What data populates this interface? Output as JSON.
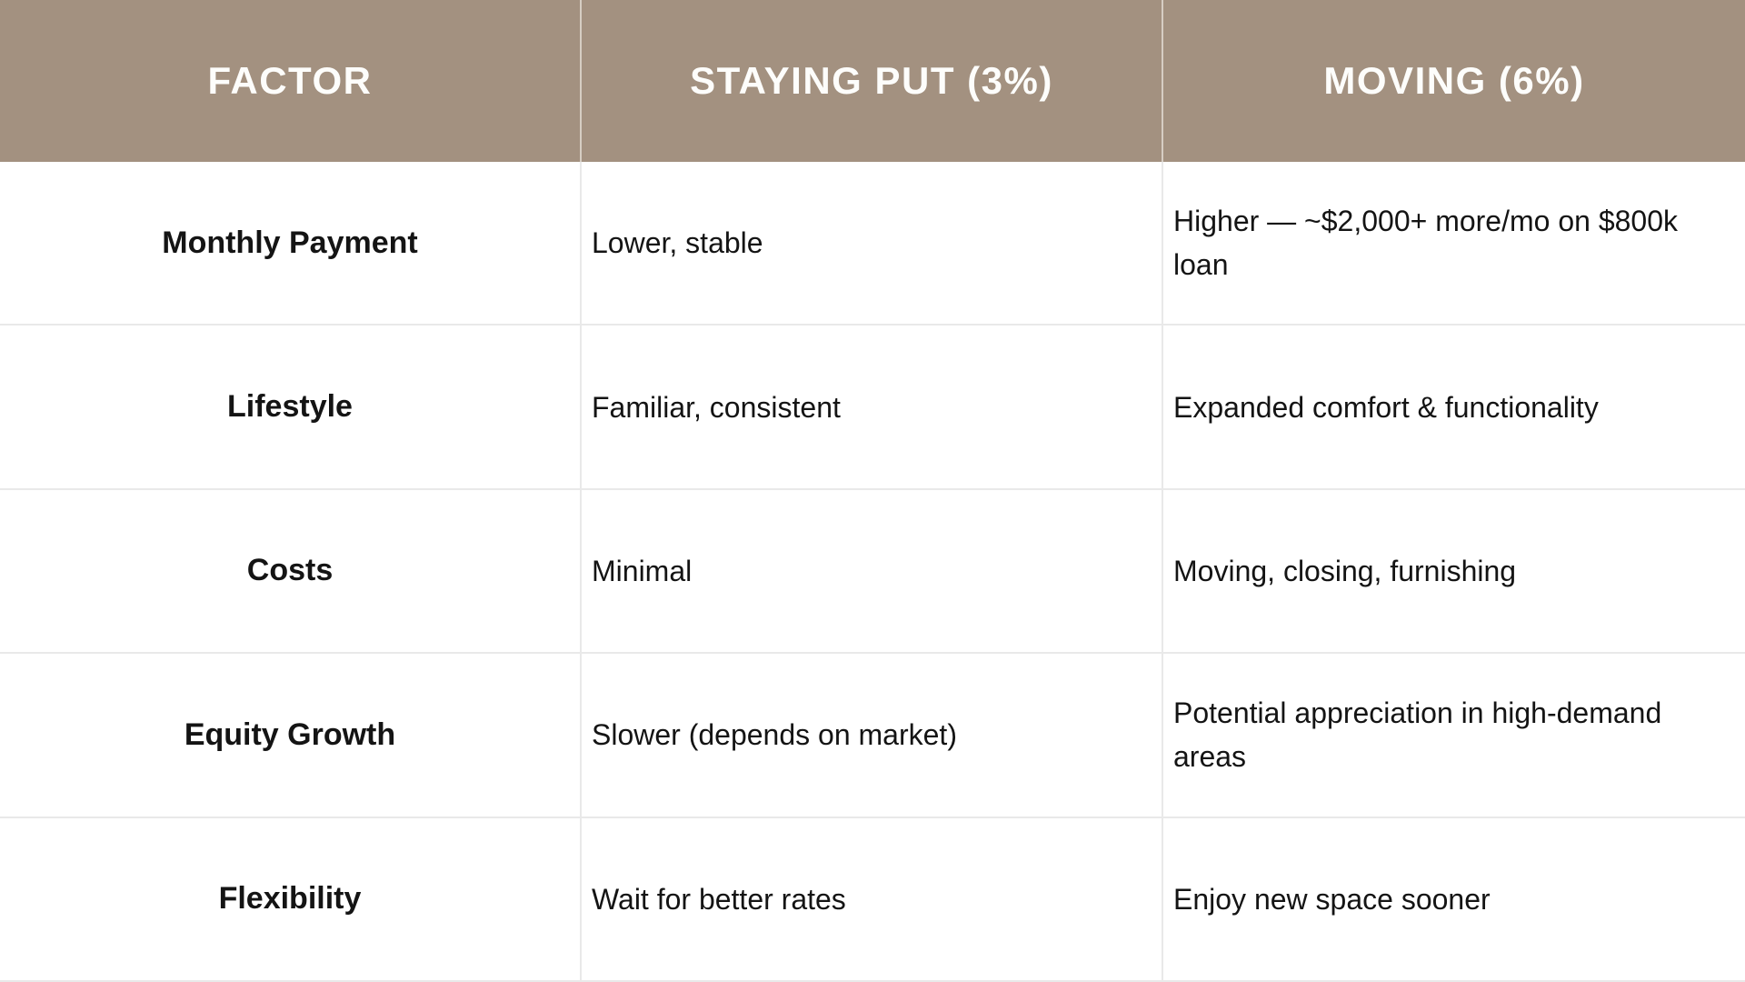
{
  "colors": {
    "header-bg": "#a39180",
    "header-text": "#fdfdfb",
    "header-divider": "#d6cdc3",
    "body-text": "#141414",
    "grid-line": "#e9e9e9",
    "page-bg": "#ffffff"
  },
  "chart_data": {
    "type": "table",
    "columns": [
      "FACTOR",
      "STAYING PUT (3%)",
      "MOVING (6%)"
    ],
    "rows": [
      [
        "Monthly Payment",
        "Lower, stable",
        "Higher — ~$2,000+ more/mo on $800k loan"
      ],
      [
        "Lifestyle",
        "Familiar, consistent",
        "Expanded comfort & functionality"
      ],
      [
        "Costs",
        "Minimal",
        "Moving, closing, furnishing"
      ],
      [
        "Equity Growth",
        "Slower (depends on market)",
        "Potential appreciation in high-demand areas"
      ],
      [
        "Flexibility",
        "Wait for better rates",
        "Enjoy new space sooner"
      ]
    ],
    "layout_hints": {
      "header_fill": "#a39180",
      "header_text_color": "#fdfdfb",
      "factor_column_style": "bold, centered",
      "value_column_style": "regular, left-aligned",
      "grid": "light horizontal and vertical separators"
    }
  }
}
